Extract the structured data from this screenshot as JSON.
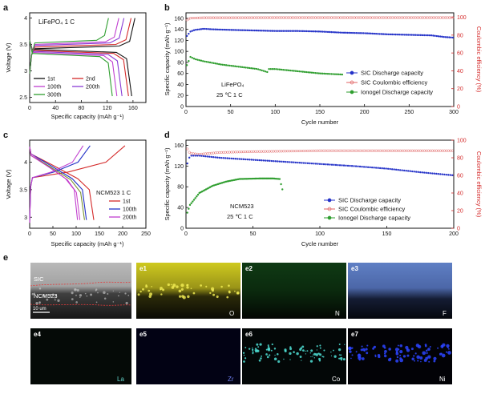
{
  "colors": {
    "black": "#111111",
    "red": "#d42a2a",
    "green": "#2f9e2f",
    "purple": "#c03fd0",
    "blue": "#2432c8",
    "ce": "#e06060",
    "yellow": "#d6d02a",
    "cyan": "#35c7c0",
    "ni": "#1f2fe6"
  },
  "figure": {
    "panels": {
      "a": {
        "letter": "a",
        "annotation": "LiFePO₄ 1 C",
        "xlabel": "Specific capacity (mAh g⁻¹)",
        "ylabel": "Voltage (V)",
        "legend": [
          "1st",
          "2nd",
          "100th",
          "200th",
          "300th"
        ]
      },
      "b": {
        "letter": "b",
        "xlabel": "Cycle number",
        "ylabel": "Specific capacity (mAh g⁻¹)",
        "y2label": "Coulombic efficiency (%)",
        "annotation_material": "LiFePO₄",
        "annotation_condition": "25 ℃  1 C",
        "legend": [
          "SIC Discharge capacity",
          "SIC Coulombic efficiency",
          "Ionogel Discharge capacity"
        ]
      },
      "c": {
        "letter": "c",
        "annotation": "NCM523 1 C",
        "xlabel": "Specific capacity (mAh g⁻¹)",
        "ylabel": "Voltage (V)",
        "legend": [
          "1st",
          "100th",
          "200th"
        ]
      },
      "d": {
        "letter": "d",
        "xlabel": "Cycle number",
        "ylabel": "Specific capacity (mAh g⁻¹)",
        "y2label": "Coulombic efficiency (%)",
        "annotation_material": "NCM523",
        "annotation_condition": "25 ℃   1 C",
        "legend": [
          "SIC Discharge capacity",
          "SIC Coulombic efficiency",
          "Ionogel Discharge capacity"
        ]
      },
      "e": {
        "letter": "e",
        "main_labels": [
          "SIC",
          "NCM523"
        ],
        "scale_bar": "10 um",
        "maps": [
          {
            "id": "e1",
            "element": "O"
          },
          {
            "id": "e2",
            "element": "N"
          },
          {
            "id": "e3",
            "element": "F"
          },
          {
            "id": "e4",
            "element": "La"
          },
          {
            "id": "e5",
            "element": "Zr"
          },
          {
            "id": "e6",
            "element": "Co"
          },
          {
            "id": "e7",
            "element": "Ni"
          }
        ]
      }
    }
  },
  "chart_data": [
    {
      "panel": "a",
      "type": "line",
      "title": "LiFePO4 1 C",
      "xlabel": "Specific capacity (mAh g-1)",
      "ylabel": "Voltage (V)",
      "xlim": [
        0,
        180
      ],
      "ylim": [
        2.4,
        4.1
      ],
      "xticks": [
        0,
        40,
        80,
        120,
        160
      ],
      "yticks": [
        2.5,
        3.0,
        3.5,
        4.0
      ],
      "series": [
        {
          "name": "1st",
          "color": "black",
          "discharge_capacity": 158,
          "charge_capacity": 163,
          "charge_plateau": 3.44,
          "discharge_plateau": 3.38
        },
        {
          "name": "2nd",
          "color": "red",
          "discharge_capacity": 153,
          "charge_capacity": 157,
          "charge_plateau": 3.47,
          "discharge_plateau": 3.36
        },
        {
          "name": "100th",
          "color": "purple",
          "discharge_capacity": 143,
          "charge_capacity": 146,
          "charge_plateau": 3.5,
          "discharge_plateau": 3.34
        },
        {
          "name": "200th",
          "color": "magenta",
          "discharge_capacity": 135,
          "charge_capacity": 138,
          "charge_plateau": 3.52,
          "discharge_plateau": 3.32
        },
        {
          "name": "300th",
          "color": "green",
          "discharge_capacity": 128,
          "charge_capacity": 122,
          "charge_plateau": 3.55,
          "discharge_plateau": 3.3
        }
      ]
    },
    {
      "panel": "b",
      "type": "scatter",
      "xlabel": "Cycle number",
      "ylabel": "Specific capacity (mAh g-1)",
      "y2label": "Coulombic efficiency (%)",
      "xlim": [
        0,
        300
      ],
      "ylim": [
        0,
        170
      ],
      "y2lim": [
        0,
        105
      ],
      "xticks": [
        0,
        50,
        100,
        150,
        200,
        250,
        300
      ],
      "yticks": [
        0,
        20,
        40,
        60,
        80,
        100,
        120,
        140,
        160
      ],
      "y2ticks": [
        0,
        20,
        40,
        60,
        80,
        100
      ],
      "series": [
        {
          "name": "SIC Discharge capacity",
          "axis": "left",
          "x": [
            1,
            5,
            10,
            20,
            30,
            50,
            75,
            100,
            125,
            150,
            175,
            200,
            225,
            250,
            275,
            290,
            300
          ],
          "y": [
            128,
            136,
            139,
            141,
            140,
            139,
            138,
            137,
            137,
            136,
            134,
            133,
            131,
            130,
            129,
            126,
            125
          ]
        },
        {
          "name": "SIC Coulombic efficiency",
          "axis": "right",
          "x": [
            1,
            5,
            20,
            50,
            100,
            150,
            200,
            250,
            300
          ],
          "y": [
            97,
            99,
            99.5,
            99.5,
            99.6,
            99.6,
            99.6,
            99.6,
            99.6
          ]
        },
        {
          "name": "Ionogel Discharge capacity",
          "axis": "left",
          "x": [
            1,
            5,
            10,
            20,
            40,
            60,
            80,
            92,
            93,
            100,
            125,
            150,
            175
          ],
          "y": [
            75,
            90,
            86,
            82,
            76,
            72,
            68,
            62,
            68,
            68,
            64,
            60,
            58
          ]
        }
      ]
    },
    {
      "panel": "c",
      "type": "line",
      "title": "NCM523 1 C",
      "xlabel": "Specific capacity (mAh g-1)",
      "ylabel": "Voltage (V)",
      "xlim": [
        0,
        250
      ],
      "ylim": [
        2.8,
        4.4
      ],
      "xticks": [
        0,
        50,
        100,
        150,
        200,
        250
      ],
      "yticks": [
        3.0,
        3.5,
        4.0
      ],
      "series": [
        {
          "name": "1st",
          "color": "red",
          "charge_capacity": 205,
          "discharge_capacity": 138
        },
        {
          "name": "100th",
          "color": "blue",
          "charge_capacity": 130,
          "discharge_capacity": 122
        },
        {
          "name": "200th",
          "color": "magenta",
          "charge_capacity": 115,
          "discharge_capacity": 103
        }
      ]
    },
    {
      "panel": "d",
      "type": "scatter",
      "xlabel": "Cycle number",
      "ylabel": "Specific capacity (mAh g-1)",
      "y2label": "Coulombic efficiency (%)",
      "xlim": [
        0,
        200
      ],
      "ylim": [
        0,
        170
      ],
      "y2lim": [
        0,
        100
      ],
      "xticks": [
        0,
        50,
        100,
        150,
        200
      ],
      "yticks": [
        0,
        40,
        80,
        120,
        160
      ],
      "y2ticks": [
        0,
        20,
        40,
        60,
        80,
        100
      ],
      "series": [
        {
          "name": "SIC Discharge capacity",
          "axis": "left",
          "x": [
            1,
            3,
            10,
            25,
            50,
            75,
            100,
            125,
            150,
            175,
            200
          ],
          "y": [
            125,
            140,
            140,
            136,
            132,
            128,
            124,
            120,
            115,
            108,
            102
          ]
        },
        {
          "name": "SIC Coulombic efficiency",
          "axis": "right",
          "x": [
            1,
            3,
            10,
            25,
            50,
            100,
            150,
            200
          ],
          "y": [
            90,
            85,
            84,
            86,
            87,
            88,
            88,
            88
          ]
        },
        {
          "name": "Ionogel Discharge capacity",
          "axis": "left",
          "x": [
            1,
            3,
            10,
            20,
            30,
            40,
            55,
            65,
            70,
            72
          ],
          "y": [
            30,
            45,
            68,
            82,
            90,
            95,
            96,
            96,
            95,
            75
          ]
        }
      ]
    }
  ]
}
